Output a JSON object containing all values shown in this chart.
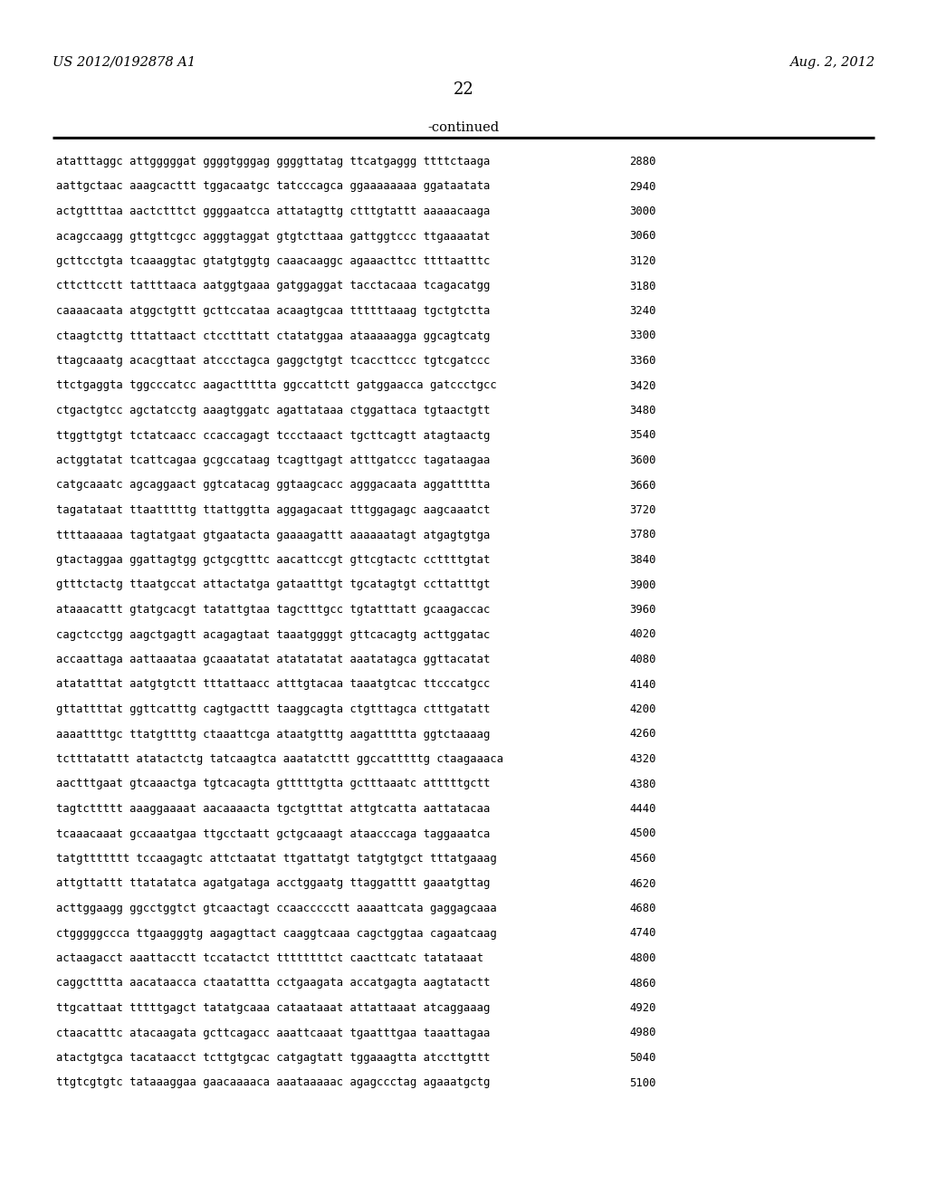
{
  "left_header": "US 2012/0192878 A1",
  "right_header": "Aug. 2, 2012",
  "page_number": "22",
  "continued_label": "-continued",
  "bg_color": "#ffffff",
  "text_color": "#000000",
  "lines": [
    [
      "atatttaggc attgggggat ggggtgggag ggggttatag ttcatgaggg ttttctaaga",
      "2880"
    ],
    [
      "aattgctaac aaagcacttt tggacaatgc tatcccagca ggaaaaaaaa ggataatata",
      "2940"
    ],
    [
      "actgttttaa aactctttct ggggaatcca attatagttg ctttgtattt aaaaacaaga",
      "3000"
    ],
    [
      "acagccaagg gttgttcgcc agggtaggat gtgtcttaaa gattggtccc ttgaaaatat",
      "3060"
    ],
    [
      "gcttcctgta tcaaaggtac gtatgtggtg caaacaaggc agaaacttcc ttttaatttc",
      "3120"
    ],
    [
      "cttcttcctt tattttaaca aatggtgaaa gatggaggat tacctacaaa tcagacatgg",
      "3180"
    ],
    [
      "caaaacaata atggctgttt gcttccataa acaagtgcaa ttttttaaag tgctgtctta",
      "3240"
    ],
    [
      "ctaagtcttg tttattaact ctcctttatt ctatatggaa ataaaaagga ggcagtcatg",
      "3300"
    ],
    [
      "ttagcaaatg acacgttaat atccctagca gaggctgtgt tcaccttccc tgtcgatccc",
      "3360"
    ],
    [
      "ttctgaggta tggcccatcc aagacttttta ggccattctt gatggaacca gatccctgcc",
      "3420"
    ],
    [
      "ctgactgtcc agctatcctg aaagtggatc agattataaa ctggattaca tgtaactgtt",
      "3480"
    ],
    [
      "ttggttgtgt tctatcaacc ccaccagagt tccctaaact tgcttcagtt atagtaactg",
      "3540"
    ],
    [
      "actggtatat tcattcagaa gcgccataag tcagttgagt atttgatccc tagataagaa",
      "3600"
    ],
    [
      "catgcaaatc agcaggaact ggtcatacag ggtaagcacc agggacaata aggattttta",
      "3660"
    ],
    [
      "tagatataat ttaatttttg ttattggtta aggagacaat tttggagagc aagcaaatct",
      "3720"
    ],
    [
      "ttttaaaaaa tagtatgaat gtgaatacta gaaaagattt aaaaaatagt atgagtgtga",
      "3780"
    ],
    [
      "gtactaggaa ggattagtgg gctgcgtttc aacattccgt gttcgtactc ccttttgtat",
      "3840"
    ],
    [
      "gtttctactg ttaatgccat attactatga gataatttgt tgcatagtgt ccttatttgt",
      "3900"
    ],
    [
      "ataaacattt gtatgcacgt tatattgtaa tagctttgcc tgtatttatt gcaagaccac",
      "3960"
    ],
    [
      "cagctcctgg aagctgagtt acagagtaat taaatggggt gttcacagtg acttggatac",
      "4020"
    ],
    [
      "accaattaga aattaaataa gcaaatatat atatatatat aaatatagca ggttacatat",
      "4080"
    ],
    [
      "atatatttat aatgtgtctt tttattaacc atttgtacaa taaatgtcac ttcccatgcc",
      "4140"
    ],
    [
      "gttattttat ggttcatttg cagtgacttt taaggcagta ctgtttagca ctttgatatt",
      "4200"
    ],
    [
      "aaaattttgc ttatgttttg ctaaattcga ataatgtttg aagattttta ggtctaaaag",
      "4260"
    ],
    [
      "tctttatattt atatactctg tatcaagtca aaatatcttt ggccatttttg ctaagaaaca",
      "4320"
    ],
    [
      "aactttgaat gtcaaactga tgtcacagta gtttttgtta gctttaaatc atttttgctt",
      "4380"
    ],
    [
      "tagtcttttt aaaggaaaat aacaaaacta tgctgtttat attgtcatta aattatacaa",
      "4440"
    ],
    [
      "tcaaacaaat gccaaatgaa ttgcctaatt gctgcaaagt ataacccaga taggaaatca",
      "4500"
    ],
    [
      "tatgttttttt tccaagagtc attctaatat ttgattatgt tatgtgtgct tttatgaaag",
      "4560"
    ],
    [
      "attgttattt ttatatatca agatgataga acctggaatg ttaggatttt gaaatgttag",
      "4620"
    ],
    [
      "acttggaagg ggcctggtct gtcaactagt ccaaccccctt aaaattcata gaggagcaaa",
      "4680"
    ],
    [
      "ctgggggccca ttgaagggtg aagagttact caaggtcaaa cagctggtaa cagaatcaag",
      "4740"
    ],
    [
      "actaagacct aaattacctt tccatactct ttttttttct caacttcatc tatataaat",
      "4800"
    ],
    [
      "caggctttta aacataacca ctaatattta cctgaagata accatgagta aagtatactt",
      "4860"
    ],
    [
      "ttgcattaat tttttgagct tatatgcaaa cataataaat attattaaat atcaggaaag",
      "4920"
    ],
    [
      "ctaacatttc atacaagata gcttcagacc aaattcaaat tgaatttgaa taaattagaa",
      "4980"
    ],
    [
      "atactgtgca tacataacct tcttgtgcac catgagtatt tggaaagtta atccttgttt",
      "5040"
    ],
    [
      "ttgtcgtgtc tataaaggaa gaacaaaaca aaataaaaac agagccctag agaaatgctg",
      "5100"
    ]
  ]
}
